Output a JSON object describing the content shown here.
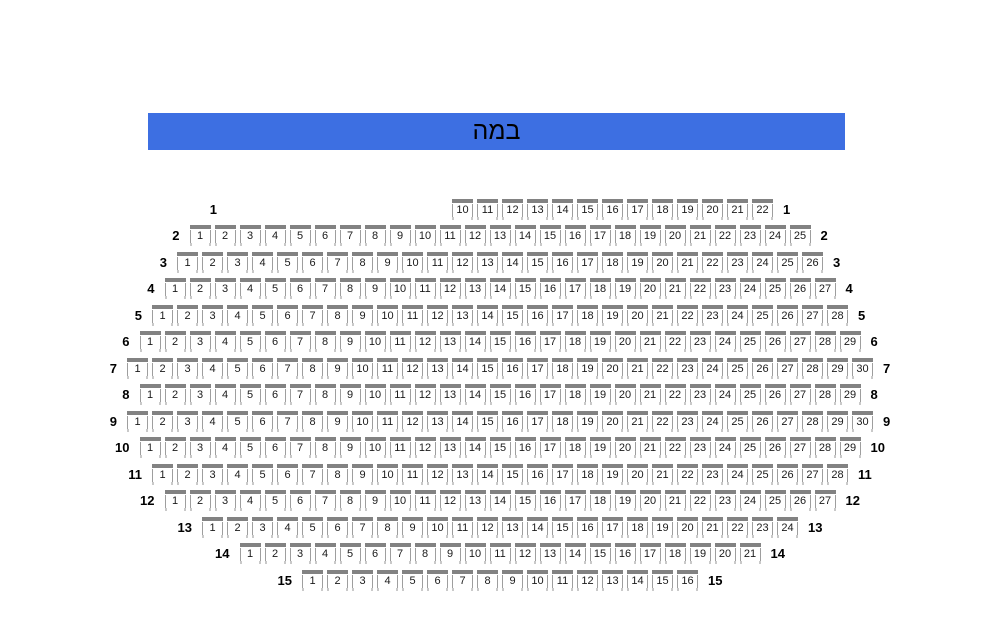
{
  "stage": {
    "label": "במה",
    "background": "#3d6fe2",
    "text_color": "#000000"
  },
  "seat_colors": {
    "back": "#828282",
    "border": "#9e9e9e",
    "legs": "#c9c9c9",
    "number": "#1a1a1a"
  },
  "rows": [
    {
      "label": "1",
      "first_seat": 10,
      "last_seat": 22
    },
    {
      "label": "2",
      "first_seat": 1,
      "last_seat": 25
    },
    {
      "label": "3",
      "first_seat": 1,
      "last_seat": 26
    },
    {
      "label": "4",
      "first_seat": 1,
      "last_seat": 27
    },
    {
      "label": "5",
      "first_seat": 1,
      "last_seat": 28
    },
    {
      "label": "6",
      "first_seat": 1,
      "last_seat": 29
    },
    {
      "label": "7",
      "first_seat": 1,
      "last_seat": 30
    },
    {
      "label": "8",
      "first_seat": 1,
      "last_seat": 29
    },
    {
      "label": "9",
      "first_seat": 1,
      "last_seat": 30
    },
    {
      "label": "10",
      "first_seat": 1,
      "last_seat": 29
    },
    {
      "label": "11",
      "first_seat": 1,
      "last_seat": 28
    },
    {
      "label": "12",
      "first_seat": 1,
      "last_seat": 27
    },
    {
      "label": "13",
      "first_seat": 1,
      "last_seat": 24
    },
    {
      "label": "14",
      "first_seat": 1,
      "last_seat": 21
    },
    {
      "label": "15",
      "first_seat": 1,
      "last_seat": 16
    }
  ]
}
